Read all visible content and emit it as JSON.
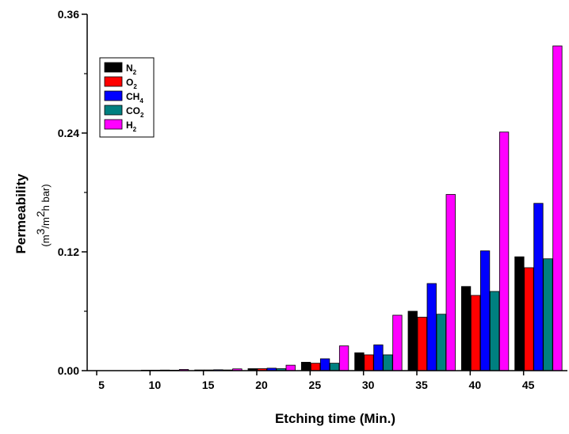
{
  "chart_data": {
    "type": "bar",
    "xlabel": "Etching time (Min.)",
    "ylabel": "Permeability",
    "ylabel_unit": {
      "open": "(m",
      "sup1": "3",
      "mid": "/m",
      "sup2": "2",
      "close": "h bar)"
    },
    "categories": [
      "5",
      "10",
      "15",
      "20",
      "25",
      "30",
      "35",
      "40",
      "45"
    ],
    "yticks": [
      "0.00",
      "0.12",
      "0.24",
      "0.36"
    ],
    "ylim": [
      0,
      0.36
    ],
    "grid": false,
    "legend_position": "top-left",
    "series": [
      {
        "name": "N2",
        "label_main": "N",
        "label_sub": "2",
        "color": "#000000",
        "values": [
          0.0,
          0.0005,
          0.0007,
          0.002,
          0.0085,
          0.018,
          0.06,
          0.085,
          0.115
        ]
      },
      {
        "name": "O2",
        "label_main": "O",
        "label_sub": "2",
        "color": "#ff0000",
        "values": [
          0.0,
          0.0005,
          0.0007,
          0.002,
          0.0075,
          0.016,
          0.054,
          0.076,
          0.104
        ]
      },
      {
        "name": "CH4",
        "label_main": "CH",
        "label_sub": "4",
        "color": "#0000ff",
        "values": [
          0.0,
          0.0006,
          0.0009,
          0.0025,
          0.012,
          0.026,
          0.088,
          0.121,
          0.169
        ]
      },
      {
        "name": "CO2",
        "label_main": "CO",
        "label_sub": "2",
        "color": "#008080",
        "values": [
          0.0,
          0.0005,
          0.0007,
          0.002,
          0.0075,
          0.016,
          0.057,
          0.08,
          0.113
        ]
      },
      {
        "name": "H2",
        "label_main": "H",
        "label_sub": "2",
        "color": "#ff00ff",
        "values": [
          0.0,
          0.0012,
          0.0018,
          0.0055,
          0.025,
          0.056,
          0.178,
          0.241,
          0.328
        ]
      }
    ]
  }
}
